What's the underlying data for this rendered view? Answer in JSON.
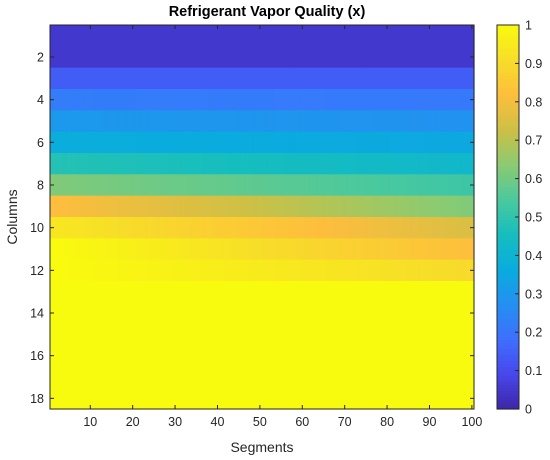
{
  "chart_data": {
    "type": "heatmap",
    "title": "Refrigerant Vapor Quality (x)",
    "xlabel": "Segments",
    "ylabel": "Columns",
    "x": [
      1,
      100
    ],
    "y_rows": 18,
    "xlim": [
      0.5,
      100.5
    ],
    "ylim": [
      0.5,
      18.5
    ],
    "y_reversed": true,
    "xticks": [
      10,
      20,
      30,
      40,
      50,
      60,
      70,
      80,
      90,
      100
    ],
    "yticks": [
      2,
      4,
      6,
      8,
      10,
      12,
      14,
      16,
      18
    ],
    "colormap": "parula",
    "clim": [
      0,
      1
    ],
    "colorbar_ticks": [
      0,
      0.1,
      0.2,
      0.3,
      0.4,
      0.5,
      0.6,
      0.7,
      0.8,
      0.9,
      1
    ],
    "colorbar_tick_labels": [
      "0",
      "0.1",
      "0.2",
      "0.3",
      "0.4",
      "0.5",
      "0.6",
      "0.7",
      "0.8",
      "0.9",
      "1"
    ],
    "rows": [
      {
        "row": 1,
        "start": 0.05,
        "end": 0.05
      },
      {
        "row": 2,
        "start": 0.05,
        "end": 0.05
      },
      {
        "row": 3,
        "start": 0.14,
        "end": 0.14
      },
      {
        "row": 4,
        "start": 0.22,
        "end": 0.21
      },
      {
        "row": 5,
        "start": 0.3,
        "end": 0.28
      },
      {
        "row": 6,
        "start": 0.37,
        "end": 0.35
      },
      {
        "row": 7,
        "start": 0.48,
        "end": 0.42
      },
      {
        "row": 8,
        "start": 0.62,
        "end": 0.52
      },
      {
        "row": 9,
        "start": 0.82,
        "end": 0.62
      },
      {
        "row": 10,
        "start": 0.94,
        "end": 0.75
      },
      {
        "row": 11,
        "start": 1.0,
        "end": 0.82
      },
      {
        "row": 12,
        "start": 1.0,
        "end": 0.9
      },
      {
        "row": 13,
        "start": 1.0,
        "end": 1.0
      },
      {
        "row": 14,
        "start": 1.0,
        "end": 1.0
      },
      {
        "row": 15,
        "start": 1.0,
        "end": 1.0
      },
      {
        "row": 16,
        "start": 1.0,
        "end": 1.0
      },
      {
        "row": 17,
        "start": 1.0,
        "end": 1.0
      },
      {
        "row": 18,
        "start": 1.0,
        "end": 1.0
      }
    ]
  }
}
